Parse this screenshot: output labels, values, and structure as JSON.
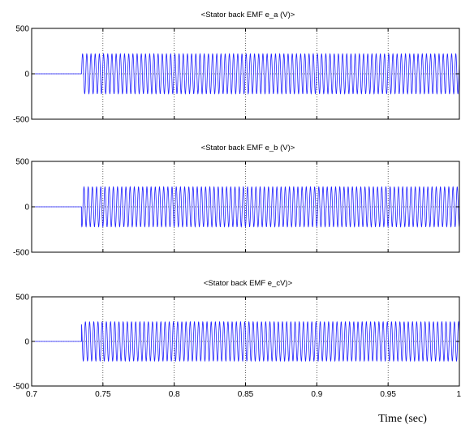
{
  "chart_data": [
    {
      "type": "line",
      "title": "<Stator back EMF e_a (V)>",
      "xlim": [
        0.7,
        1.0
      ],
      "ylim": [
        -500,
        500
      ],
      "yticks": [
        "500",
        "0",
        "-500"
      ],
      "grid": true,
      "series": [
        {
          "pre": {
            "x": [
              0.7,
              0.735
            ],
            "y": [
              0,
              0
            ]
          },
          "wave": {
            "start": 0.735,
            "end": 1.0,
            "amplitude": 220,
            "frequency_hz": 340,
            "phase_deg": 0
          }
        }
      ]
    },
    {
      "type": "line",
      "title": "<Stator back EMF e_b (V)>",
      "xlim": [
        0.7,
        1.0
      ],
      "ylim": [
        -500,
        500
      ],
      "yticks": [
        "500",
        "0",
        "-500"
      ],
      "grid": true,
      "series": [
        {
          "pre": {
            "x": [
              0.7,
              0.735
            ],
            "y": [
              0,
              0
            ]
          },
          "wave": {
            "start": 0.735,
            "end": 1.0,
            "amplitude": 220,
            "frequency_hz": 340,
            "phase_deg": -120
          }
        }
      ]
    },
    {
      "type": "line",
      "title": "<Stator back EMF e_cV)>",
      "xlim": [
        0.7,
        1.0
      ],
      "ylim": [
        -500,
        500
      ],
      "yticks": [
        "500",
        "0",
        "-500"
      ],
      "xticks": [
        "0.7",
        "0.75",
        "0.8",
        "0.85",
        "0.9",
        "0.95",
        "1"
      ],
      "xlabel": "Time (sec)",
      "grid": true,
      "series": [
        {
          "pre": {
            "x": [
              0.7,
              0.735
            ],
            "y": [
              0,
              0
            ]
          },
          "wave": {
            "start": 0.735,
            "end": 1.0,
            "amplitude": 220,
            "frequency_hz": 340,
            "phase_deg": 120
          }
        }
      ]
    }
  ],
  "colors": {
    "line": "#1f1fff",
    "grid": "#000000",
    "axes": "#000000"
  }
}
